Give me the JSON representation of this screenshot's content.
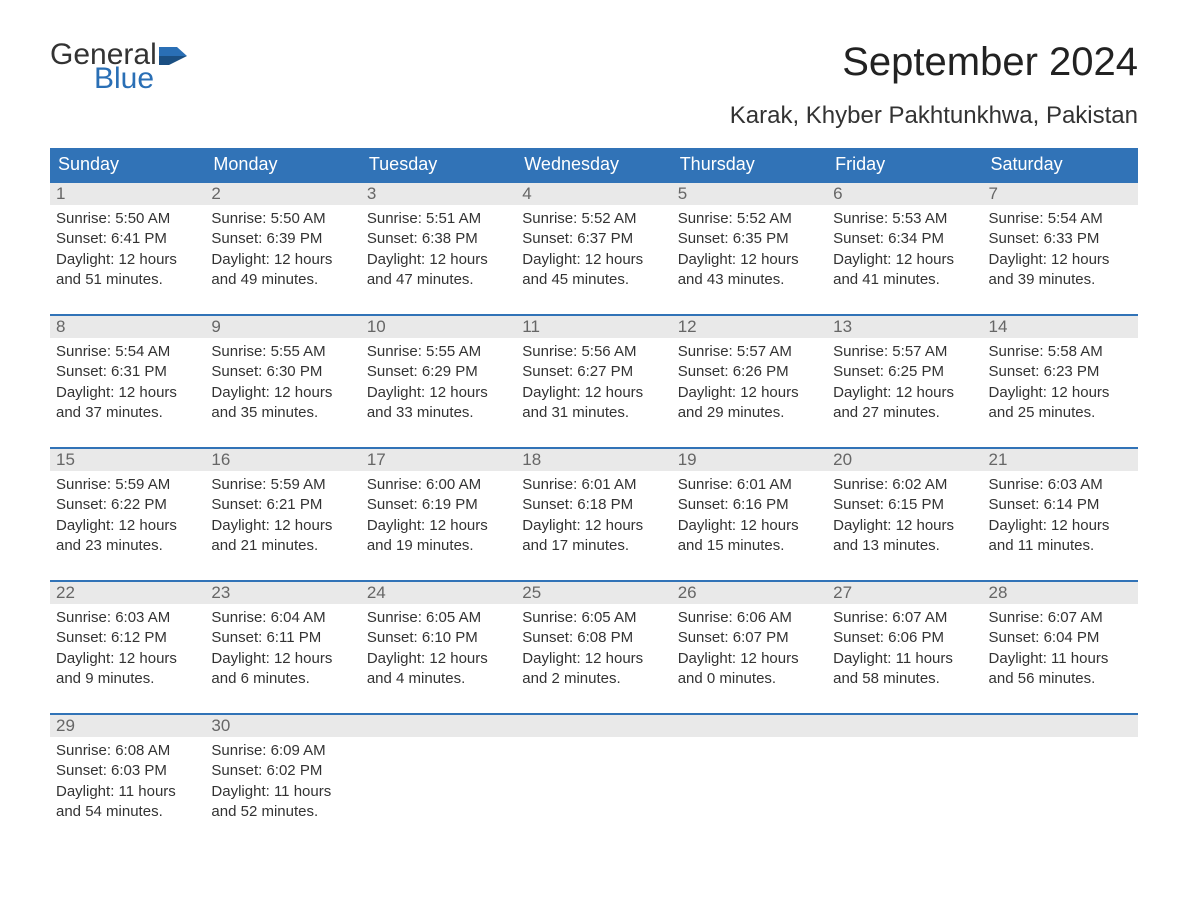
{
  "brand": {
    "general": "General",
    "blue": "Blue",
    "flag_color": "#2a6fb5"
  },
  "title": "September 2024",
  "subtitle": "Karak, Khyber Pakhtunkhwa, Pakistan",
  "colors": {
    "header_bg": "#3173b7",
    "header_text": "#ffffff",
    "daynum_bg": "#e9e9e9",
    "daynum_text": "#666666",
    "body_text": "#333333",
    "row_border": "#3173b7",
    "page_bg": "#ffffff"
  },
  "typography": {
    "title_fontsize": 40,
    "subtitle_fontsize": 24,
    "weekday_fontsize": 18,
    "daynum_fontsize": 17,
    "body_fontsize": 15,
    "logo_fontsize": 30
  },
  "layout": {
    "columns": 7,
    "rows": 5
  },
  "weekdays": [
    "Sunday",
    "Monday",
    "Tuesday",
    "Wednesday",
    "Thursday",
    "Friday",
    "Saturday"
  ],
  "days": [
    {
      "num": "1",
      "sunrise": "Sunrise: 5:50 AM",
      "sunset": "Sunset: 6:41 PM",
      "day1": "Daylight: 12 hours",
      "day2": "and 51 minutes."
    },
    {
      "num": "2",
      "sunrise": "Sunrise: 5:50 AM",
      "sunset": "Sunset: 6:39 PM",
      "day1": "Daylight: 12 hours",
      "day2": "and 49 minutes."
    },
    {
      "num": "3",
      "sunrise": "Sunrise: 5:51 AM",
      "sunset": "Sunset: 6:38 PM",
      "day1": "Daylight: 12 hours",
      "day2": "and 47 minutes."
    },
    {
      "num": "4",
      "sunrise": "Sunrise: 5:52 AM",
      "sunset": "Sunset: 6:37 PM",
      "day1": "Daylight: 12 hours",
      "day2": "and 45 minutes."
    },
    {
      "num": "5",
      "sunrise": "Sunrise: 5:52 AM",
      "sunset": "Sunset: 6:35 PM",
      "day1": "Daylight: 12 hours",
      "day2": "and 43 minutes."
    },
    {
      "num": "6",
      "sunrise": "Sunrise: 5:53 AM",
      "sunset": "Sunset: 6:34 PM",
      "day1": "Daylight: 12 hours",
      "day2": "and 41 minutes."
    },
    {
      "num": "7",
      "sunrise": "Sunrise: 5:54 AM",
      "sunset": "Sunset: 6:33 PM",
      "day1": "Daylight: 12 hours",
      "day2": "and 39 minutes."
    },
    {
      "num": "8",
      "sunrise": "Sunrise: 5:54 AM",
      "sunset": "Sunset: 6:31 PM",
      "day1": "Daylight: 12 hours",
      "day2": "and 37 minutes."
    },
    {
      "num": "9",
      "sunrise": "Sunrise: 5:55 AM",
      "sunset": "Sunset: 6:30 PM",
      "day1": "Daylight: 12 hours",
      "day2": "and 35 minutes."
    },
    {
      "num": "10",
      "sunrise": "Sunrise: 5:55 AM",
      "sunset": "Sunset: 6:29 PM",
      "day1": "Daylight: 12 hours",
      "day2": "and 33 minutes."
    },
    {
      "num": "11",
      "sunrise": "Sunrise: 5:56 AM",
      "sunset": "Sunset: 6:27 PM",
      "day1": "Daylight: 12 hours",
      "day2": "and 31 minutes."
    },
    {
      "num": "12",
      "sunrise": "Sunrise: 5:57 AM",
      "sunset": "Sunset: 6:26 PM",
      "day1": "Daylight: 12 hours",
      "day2": "and 29 minutes."
    },
    {
      "num": "13",
      "sunrise": "Sunrise: 5:57 AM",
      "sunset": "Sunset: 6:25 PM",
      "day1": "Daylight: 12 hours",
      "day2": "and 27 minutes."
    },
    {
      "num": "14",
      "sunrise": "Sunrise: 5:58 AM",
      "sunset": "Sunset: 6:23 PM",
      "day1": "Daylight: 12 hours",
      "day2": "and 25 minutes."
    },
    {
      "num": "15",
      "sunrise": "Sunrise: 5:59 AM",
      "sunset": "Sunset: 6:22 PM",
      "day1": "Daylight: 12 hours",
      "day2": "and 23 minutes."
    },
    {
      "num": "16",
      "sunrise": "Sunrise: 5:59 AM",
      "sunset": "Sunset: 6:21 PM",
      "day1": "Daylight: 12 hours",
      "day2": "and 21 minutes."
    },
    {
      "num": "17",
      "sunrise": "Sunrise: 6:00 AM",
      "sunset": "Sunset: 6:19 PM",
      "day1": "Daylight: 12 hours",
      "day2": "and 19 minutes."
    },
    {
      "num": "18",
      "sunrise": "Sunrise: 6:01 AM",
      "sunset": "Sunset: 6:18 PM",
      "day1": "Daylight: 12 hours",
      "day2": "and 17 minutes."
    },
    {
      "num": "19",
      "sunrise": "Sunrise: 6:01 AM",
      "sunset": "Sunset: 6:16 PM",
      "day1": "Daylight: 12 hours",
      "day2": "and 15 minutes."
    },
    {
      "num": "20",
      "sunrise": "Sunrise: 6:02 AM",
      "sunset": "Sunset: 6:15 PM",
      "day1": "Daylight: 12 hours",
      "day2": "and 13 minutes."
    },
    {
      "num": "21",
      "sunrise": "Sunrise: 6:03 AM",
      "sunset": "Sunset: 6:14 PM",
      "day1": "Daylight: 12 hours",
      "day2": "and 11 minutes."
    },
    {
      "num": "22",
      "sunrise": "Sunrise: 6:03 AM",
      "sunset": "Sunset: 6:12 PM",
      "day1": "Daylight: 12 hours",
      "day2": "and 9 minutes."
    },
    {
      "num": "23",
      "sunrise": "Sunrise: 6:04 AM",
      "sunset": "Sunset: 6:11 PM",
      "day1": "Daylight: 12 hours",
      "day2": "and 6 minutes."
    },
    {
      "num": "24",
      "sunrise": "Sunrise: 6:05 AM",
      "sunset": "Sunset: 6:10 PM",
      "day1": "Daylight: 12 hours",
      "day2": "and 4 minutes."
    },
    {
      "num": "25",
      "sunrise": "Sunrise: 6:05 AM",
      "sunset": "Sunset: 6:08 PM",
      "day1": "Daylight: 12 hours",
      "day2": "and 2 minutes."
    },
    {
      "num": "26",
      "sunrise": "Sunrise: 6:06 AM",
      "sunset": "Sunset: 6:07 PM",
      "day1": "Daylight: 12 hours",
      "day2": "and 0 minutes."
    },
    {
      "num": "27",
      "sunrise": "Sunrise: 6:07 AM",
      "sunset": "Sunset: 6:06 PM",
      "day1": "Daylight: 11 hours",
      "day2": "and 58 minutes."
    },
    {
      "num": "28",
      "sunrise": "Sunrise: 6:07 AM",
      "sunset": "Sunset: 6:04 PM",
      "day1": "Daylight: 11 hours",
      "day2": "and 56 minutes."
    },
    {
      "num": "29",
      "sunrise": "Sunrise: 6:08 AM",
      "sunset": "Sunset: 6:03 PM",
      "day1": "Daylight: 11 hours",
      "day2": "and 54 minutes."
    },
    {
      "num": "30",
      "sunrise": "Sunrise: 6:09 AM",
      "sunset": "Sunset: 6:02 PM",
      "day1": "Daylight: 11 hours",
      "day2": "and 52 minutes."
    },
    {
      "num": "",
      "sunrise": "",
      "sunset": "",
      "day1": "",
      "day2": "",
      "empty": true
    },
    {
      "num": "",
      "sunrise": "",
      "sunset": "",
      "day1": "",
      "day2": "",
      "empty": true
    },
    {
      "num": "",
      "sunrise": "",
      "sunset": "",
      "day1": "",
      "day2": "",
      "empty": true
    },
    {
      "num": "",
      "sunrise": "",
      "sunset": "",
      "day1": "",
      "day2": "",
      "empty": true
    },
    {
      "num": "",
      "sunrise": "",
      "sunset": "",
      "day1": "",
      "day2": "",
      "empty": true
    }
  ]
}
